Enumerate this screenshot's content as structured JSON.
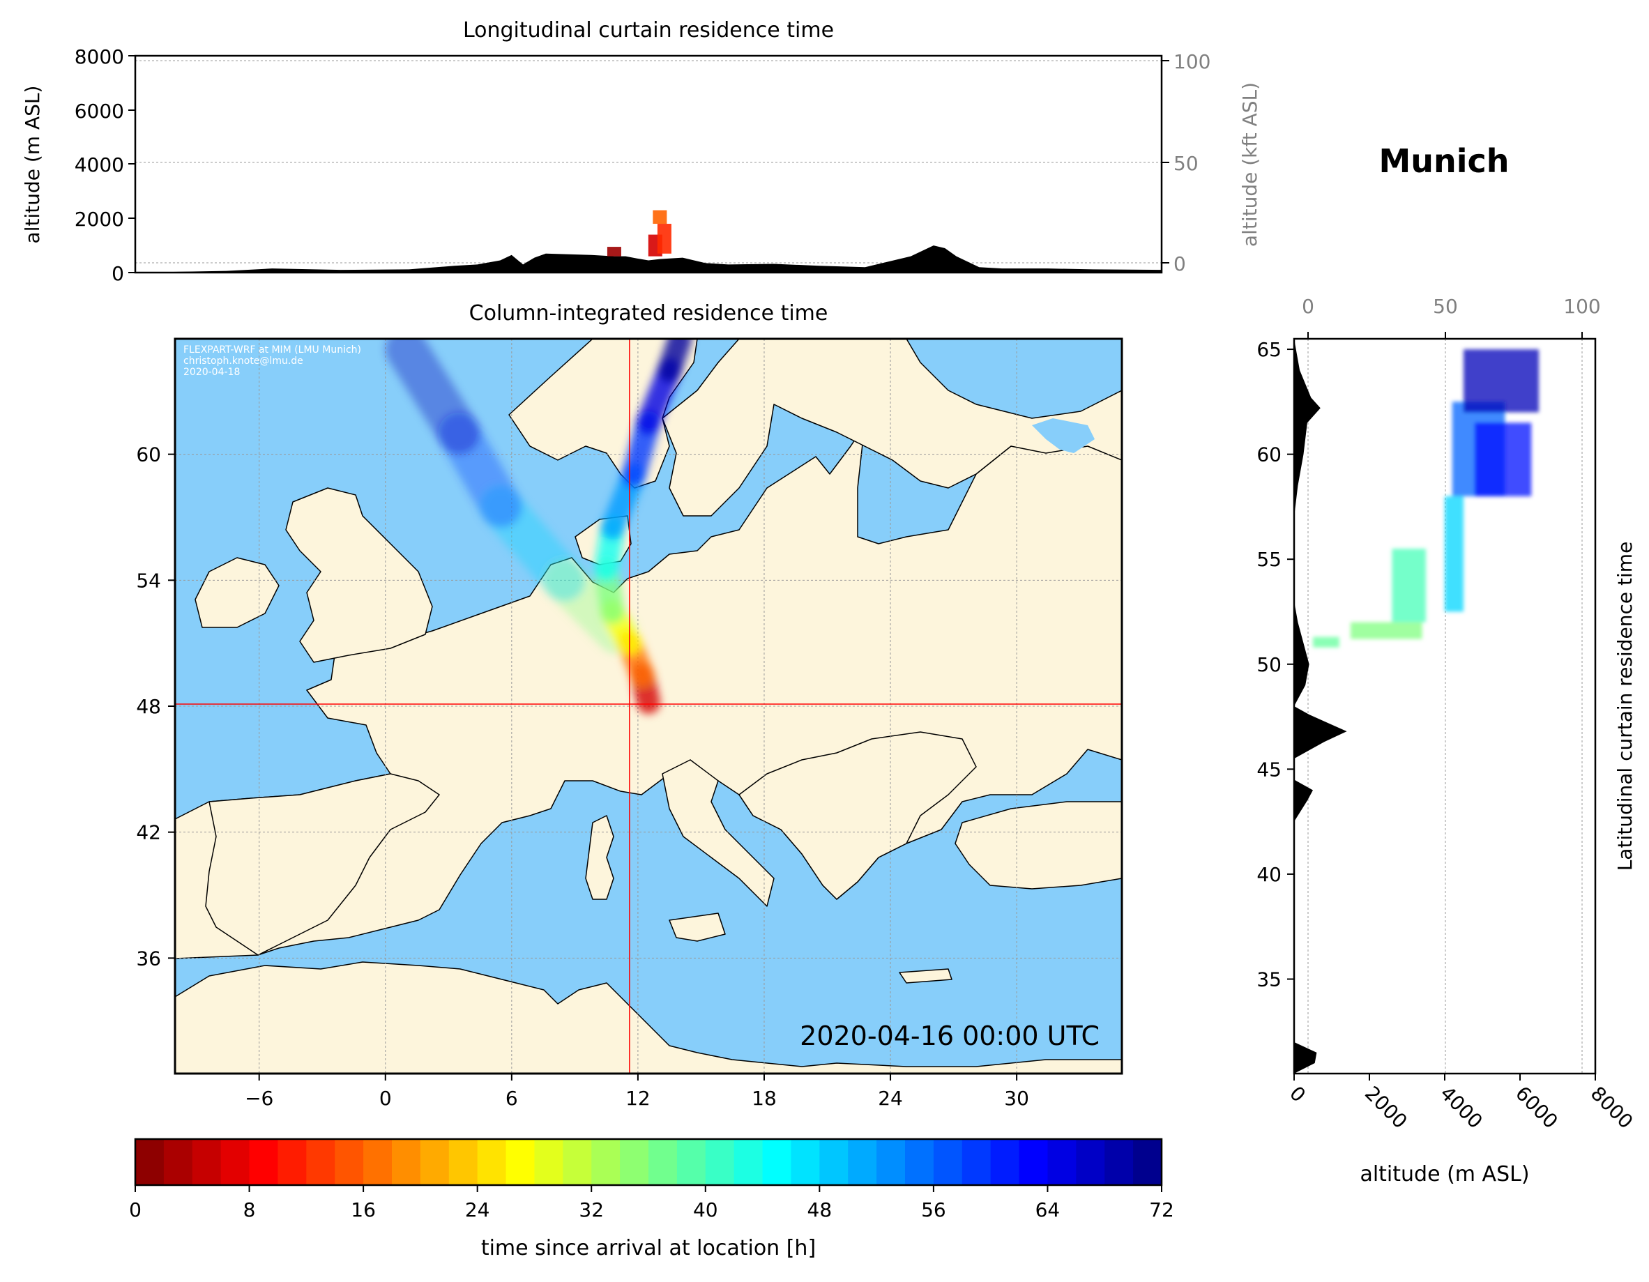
{
  "location": "Munich",
  "colors": {
    "ocean": "#87cefa",
    "land": "#fdf5dc",
    "terrain": "#000000",
    "crosshair": "#ff0000",
    "secondary_axis": "#808080"
  },
  "map_panel": {
    "title": "Column-integrated residence time",
    "timestamp": "2020-04-16 00:00 UTC",
    "watermark": [
      "FLEXPART-WRF at MIM (LMU Munich)",
      "christoph.knote@lmu.de",
      "2020-04-18"
    ],
    "xticks": [
      "−6",
      "0",
      "6",
      "12",
      "18",
      "24",
      "30"
    ],
    "yticks": [
      "60",
      "54",
      "48",
      "42",
      "36"
    ]
  },
  "top_panel": {
    "title": "Longitudinal curtain residence time",
    "ylabel_left": "altitude (m ASL)",
    "ylabel_right": "altitude (kft ASL)",
    "yticks_left": [
      "8000",
      "6000",
      "4000",
      "2000",
      "0"
    ],
    "yticks_right": [
      "100",
      "50",
      "0"
    ]
  },
  "side_panel": {
    "ylabel": "Latitudinal curtain residence time",
    "xlabel": "altitude (m ASL)",
    "xticks_bottom": [
      "0",
      "2000",
      "4000",
      "6000",
      "8000"
    ],
    "xticks_top": [
      "0",
      "50",
      "100"
    ],
    "yticks": [
      "65",
      "60",
      "55",
      "50",
      "45",
      "40",
      "35"
    ]
  },
  "colorbar": {
    "label": "time since arrival at location [h]",
    "ticks": [
      "0",
      "8",
      "16",
      "24",
      "32",
      "40",
      "48",
      "56",
      "64",
      "72"
    ]
  },
  "chart_data": [
    {
      "type": "heatmap",
      "title": "Column-integrated residence time",
      "xlim": [
        -10,
        35
      ],
      "ylim": [
        30.5,
        65.5
      ],
      "receptor": {
        "lon": 11.6,
        "lat": 48.1
      },
      "trajectory": [
        {
          "lon": 12.5,
          "lat": 48.2,
          "hours": 0
        },
        {
          "lon": 12.2,
          "lat": 49.5,
          "hours": 12
        },
        {
          "lon": 11.6,
          "lat": 51.0,
          "hours": 22
        },
        {
          "lon": 10.8,
          "lat": 52.5,
          "hours": 32
        },
        {
          "lon": 10.5,
          "lat": 54.5,
          "hours": 40
        },
        {
          "lon": 10.8,
          "lat": 56.5,
          "hours": 48
        },
        {
          "lon": 11.8,
          "lat": 59.0,
          "hours": 56
        },
        {
          "lon": 12.5,
          "lat": 61.5,
          "hours": 62
        },
        {
          "lon": 13.5,
          "lat": 64.0,
          "hours": 68
        },
        {
          "lon": 14.0,
          "lat": 65.5,
          "hours": 72
        }
      ],
      "trajectory_branch": [
        {
          "lon": 11.0,
          "lat": 51.5,
          "hours": 30
        },
        {
          "lon": 8.5,
          "lat": 54.0,
          "hours": 42
        },
        {
          "lon": 5.5,
          "lat": 57.5,
          "hours": 54
        },
        {
          "lon": 3.5,
          "lat": 61.0,
          "hours": 64
        },
        {
          "lon": 1.0,
          "lat": 65.0,
          "hours": 72
        }
      ]
    },
    {
      "type": "area",
      "title": "Longitudinal curtain residence time",
      "ylabel": "altitude (m ASL)",
      "xlim": [
        -10,
        35
      ],
      "ylim": [
        0,
        8000
      ],
      "terrain_profile": {
        "lon": [
          -10,
          -6,
          -4,
          -1,
          2,
          4,
          5,
          6,
          6.5,
          7,
          7.5,
          8,
          10,
          11,
          11.5,
          12,
          12.5,
          13,
          14,
          15,
          16,
          18,
          20,
          22,
          24,
          25,
          25.5,
          26,
          27,
          28,
          30,
          32,
          35
        ],
        "alt": [
          0,
          60,
          150,
          100,
          120,
          250,
          300,
          450,
          650,
          300,
          550,
          700,
          650,
          600,
          600,
          520,
          450,
          500,
          550,
          350,
          300,
          320,
          250,
          200,
          600,
          1000,
          900,
          600,
          200,
          150,
          150,
          120,
          100
        ]
      },
      "plume": [
        {
          "lon": 11.0,
          "alt_bottom": 600,
          "alt_top": 950,
          "hours": 2
        },
        {
          "lon": 12.8,
          "alt_bottom": 600,
          "alt_top": 1400,
          "hours": 6
        },
        {
          "lon": 13.2,
          "alt_bottom": 700,
          "alt_top": 1800,
          "hours": 12
        },
        {
          "lon": 13.0,
          "alt_bottom": 1800,
          "alt_top": 2300,
          "hours": 16
        }
      ]
    },
    {
      "type": "area",
      "title": "Latitudinal curtain residence time",
      "xlabel": "altitude (m ASL)",
      "xlim": [
        0,
        8000
      ],
      "ylim": [
        30.5,
        65.5
      ],
      "terrain_profile": {
        "lat": [
          30.5,
          31.0,
          31.5,
          32.0,
          33,
          38,
          42.5,
          43.5,
          44.0,
          44.5,
          45.5,
          46.3,
          46.8,
          47.2,
          47.6,
          48.0,
          49,
          50,
          51,
          52,
          53,
          57,
          58.5,
          60,
          61.5,
          62.2,
          62.7,
          64,
          65.5
        ],
        "alt": [
          0,
          550,
          600,
          0,
          0,
          0,
          0,
          350,
          500,
          0,
          0,
          800,
          1400,
          900,
          400,
          0,
          300,
          400,
          250,
          100,
          0,
          0,
          100,
          250,
          350,
          700,
          450,
          150,
          0
        ]
      },
      "plume": [
        {
          "lat_bottom": 50.8,
          "lat_top": 51.3,
          "alt_left": 500,
          "alt_right": 1200,
          "hours": 38
        },
        {
          "lat_bottom": 51.2,
          "lat_top": 52.0,
          "alt_left": 1500,
          "alt_right": 3400,
          "hours": 36
        },
        {
          "lat_bottom": 52.0,
          "lat_top": 55.5,
          "alt_left": 2600,
          "alt_right": 3500,
          "hours": 40
        },
        {
          "lat_bottom": 52.5,
          "lat_top": 58.0,
          "alt_left": 4000,
          "alt_right": 4500,
          "hours": 48
        },
        {
          "lat_bottom": 58.0,
          "lat_top": 62.5,
          "alt_left": 4200,
          "alt_right": 5600,
          "hours": 56
        },
        {
          "lat_bottom": 58.0,
          "lat_top": 61.5,
          "alt_left": 4800,
          "alt_right": 6300,
          "hours": 62
        },
        {
          "lat_bottom": 62.0,
          "lat_top": 65.0,
          "alt_left": 4500,
          "alt_right": 6500,
          "hours": 68
        }
      ]
    },
    {
      "type": "heatmap",
      "title": "time since arrival at location [h]",
      "colormap": "jet_r",
      "range": [
        0,
        72
      ],
      "levels": 36
    }
  ]
}
